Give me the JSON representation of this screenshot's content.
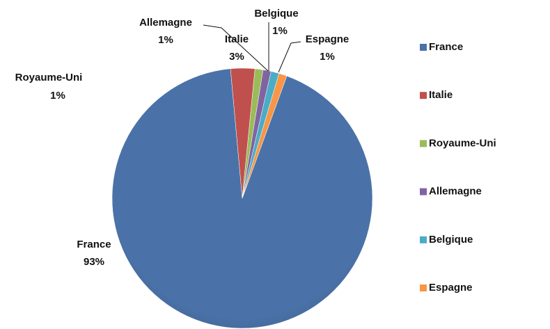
{
  "chart_data": {
    "type": "pie",
    "categories": [
      "France",
      "Italie",
      "Royaume-Uni",
      "Allemagne",
      "Belgique",
      "Espagne"
    ],
    "values": [
      93,
      3,
      1,
      1,
      1,
      1
    ],
    "value_labels": [
      "93%",
      "3%",
      "1%",
      "1%",
      "1%",
      "1%"
    ],
    "colors": [
      "#4a72a8",
      "#c0504d",
      "#9bbb59",
      "#8064a2",
      "#4bacc6",
      "#f79646"
    ],
    "legend": "right"
  }
}
